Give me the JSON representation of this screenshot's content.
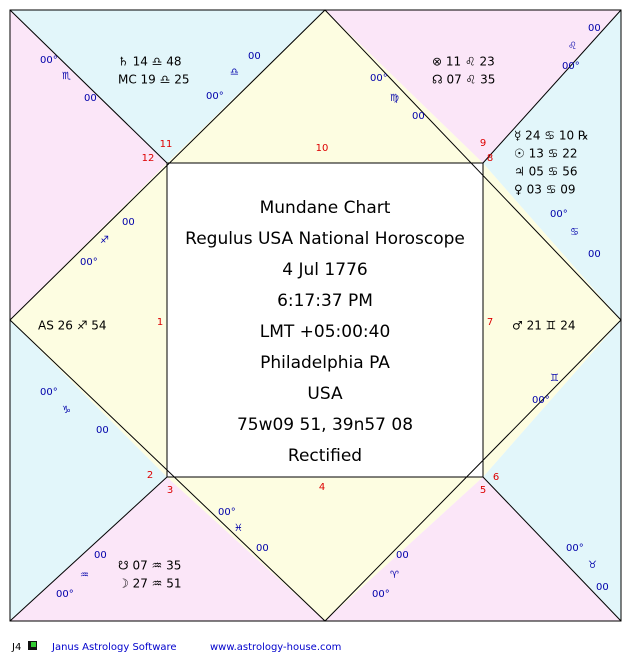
{
  "center": [
    "Mundane Chart",
    "Regulus USA National Horoscope",
    "4 Jul 1776",
    "6:17:37 PM",
    "LMT +05:00:40",
    "Philadelphia PA",
    "USA",
    "75w09 51, 39n57 08",
    "Rectified"
  ],
  "houses": [
    {
      "number": "11",
      "labels": [
        "00°",
        "♏",
        "00",
        "♄ 14 ♎ 48",
        "MC 19 ♎ 25",
        "00°",
        "♎",
        "00"
      ]
    },
    {
      "number": "12",
      "labels": [
        "00",
        "♐",
        "00°"
      ]
    },
    {
      "number": "1",
      "labels": [
        "AS 26 ♐ 54"
      ]
    },
    {
      "number": "2",
      "labels": [
        "00°",
        "♑",
        "00"
      ]
    },
    {
      "number": "3",
      "labels": [
        "00",
        "♒",
        "00°",
        "☋ 07 ♒ 35",
        "☽ 27 ♒ 51"
      ]
    },
    {
      "number": "4",
      "labels": [
        "00°",
        "♓",
        "00"
      ]
    },
    {
      "number": "5",
      "labels": [
        "00",
        "♈",
        "00°"
      ]
    },
    {
      "number": "6",
      "labels": [
        "00°",
        "♉",
        "00"
      ]
    },
    {
      "number": "7",
      "labels": [
        "♂ 21 ♊ 24",
        "♊",
        "00°"
      ]
    },
    {
      "number": "8",
      "labels": [
        "☿ 24 ♋ 10 ℞",
        "☉ 13 ♋ 22",
        "♃ 05 ♋ 56",
        "♀ 03 ♋ 09",
        "00°",
        "♋",
        "00"
      ]
    },
    {
      "number": "9",
      "labels": [
        "⊗ 11 ♌ 23",
        "☊ 07 ♌ 35",
        "00°",
        "♍",
        "00",
        "♌",
        "00",
        "00°"
      ]
    },
    {
      "number": "10",
      "labels": []
    }
  ],
  "footer": {
    "code": "J4",
    "software": "Janus Astrology Software",
    "url": "www.astrology-house.com"
  }
}
